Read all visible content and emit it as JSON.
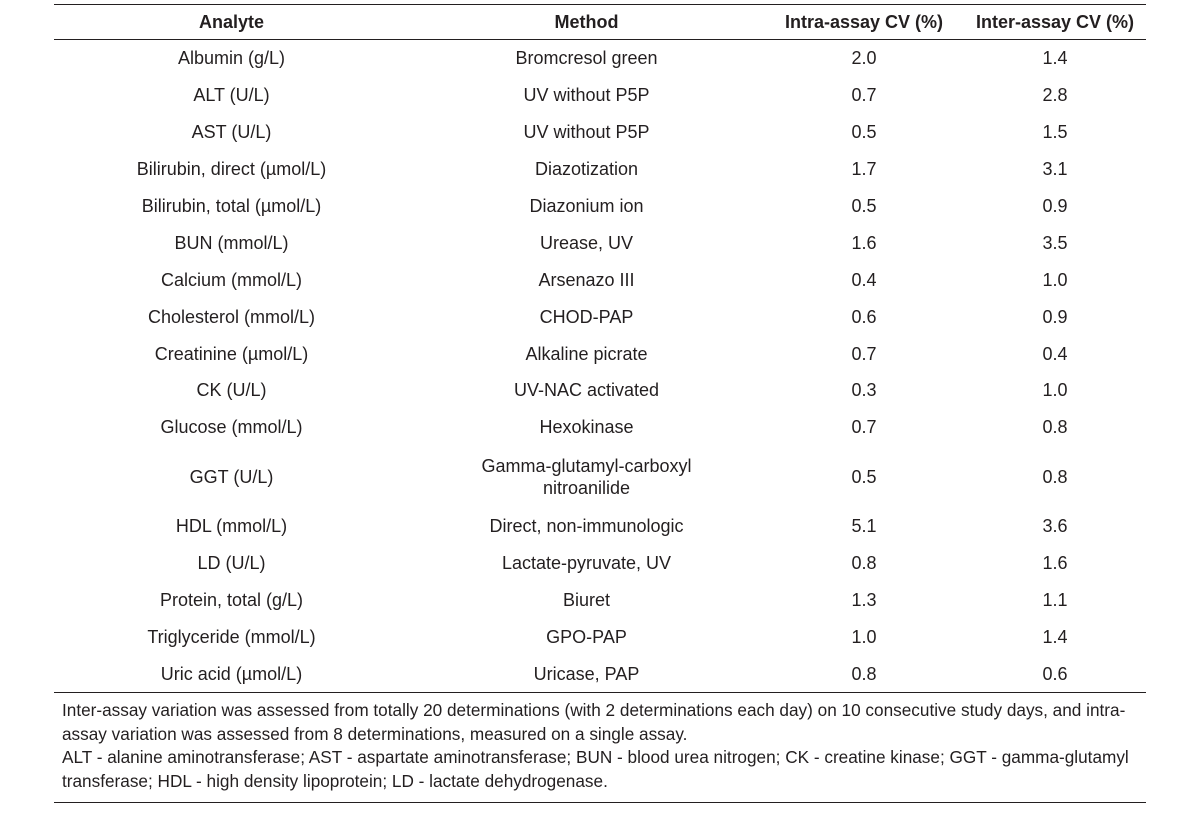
{
  "table": {
    "headers": {
      "analyte": "Analyte",
      "method": "Method",
      "intra": "Intra-assay CV (%)",
      "inter": "Inter-assay CV (%)"
    },
    "rows": [
      {
        "analyte": "Albumin (g/L)",
        "method": "Bromcresol green",
        "intra": "2.0",
        "inter": "1.4"
      },
      {
        "analyte": "ALT (U/L)",
        "method": "UV without P5P",
        "intra": "0.7",
        "inter": "2.8"
      },
      {
        "analyte": "AST (U/L)",
        "method": "UV without P5P",
        "intra": "0.5",
        "inter": "1.5"
      },
      {
        "analyte": "Bilirubin, direct (µmol/L)",
        "method": "Diazotization",
        "intra": "1.7",
        "inter": "3.1"
      },
      {
        "analyte": "Bilirubin, total (µmol/L)",
        "method": "Diazonium ion",
        "intra": "0.5",
        "inter": "0.9"
      },
      {
        "analyte": "BUN (mmol/L)",
        "method": "Urease, UV",
        "intra": "1.6",
        "inter": "3.5"
      },
      {
        "analyte": "Calcium (mmol/L)",
        "method": "Arsenazo III",
        "intra": "0.4",
        "inter": "1.0"
      },
      {
        "analyte": "Cholesterol (mmol/L)",
        "method": "CHOD-PAP",
        "intra": "0.6",
        "inter": "0.9"
      },
      {
        "analyte": "Creatinine (µmol/L)",
        "method": "Alkaline picrate",
        "intra": "0.7",
        "inter": "0.4"
      },
      {
        "analyte": "CK (U/L)",
        "method": "UV-NAC activated",
        "intra": "0.3",
        "inter": "1.0"
      },
      {
        "analyte": "Glucose (mmol/L)",
        "method": "Hexokinase",
        "intra": "0.7",
        "inter": "0.8"
      },
      {
        "analyte": "GGT (U/L)",
        "method": "Gamma-glutamyl-carboxyl nitroanilide",
        "method_line1": "Gamma-glutamyl-carboxyl",
        "method_line2": "nitroanilide",
        "intra": "0.5",
        "inter": "0.8"
      },
      {
        "analyte": "HDL (mmol/L)",
        "method": "Direct, non-immunologic",
        "intra": "5.1",
        "inter": "3.6"
      },
      {
        "analyte": "LD (U/L)",
        "method": "Lactate-pyruvate, UV",
        "intra": "0.8",
        "inter": "1.6"
      },
      {
        "analyte": "Protein, total (g/L)",
        "method": "Biuret",
        "intra": "1.3",
        "inter": "1.1"
      },
      {
        "analyte": "Triglyceride (mmol/L)",
        "method": "GPO-PAP",
        "intra": "1.0",
        "inter": "1.4"
      },
      {
        "analyte": "Uric acid (µmol/L)",
        "method": "Uricase, PAP",
        "intra": "0.8",
        "inter": "0.6"
      }
    ]
  },
  "footnote": {
    "line1": "Inter-assay variation was assessed from totally 20 determinations (with 2 determinations each day) on 10 consecutive study days, and intra-assay variation was assessed from 8 determinations, measured on a single assay.",
    "line2": "ALT - alanine aminotransferase; AST - aspartate aminotransferase; BUN - blood urea nitrogen; CK - creatine kinase; GGT - gamma-glutamyl transferase; HDL - high density lipoprotein; LD - lactate dehydrogenase."
  }
}
